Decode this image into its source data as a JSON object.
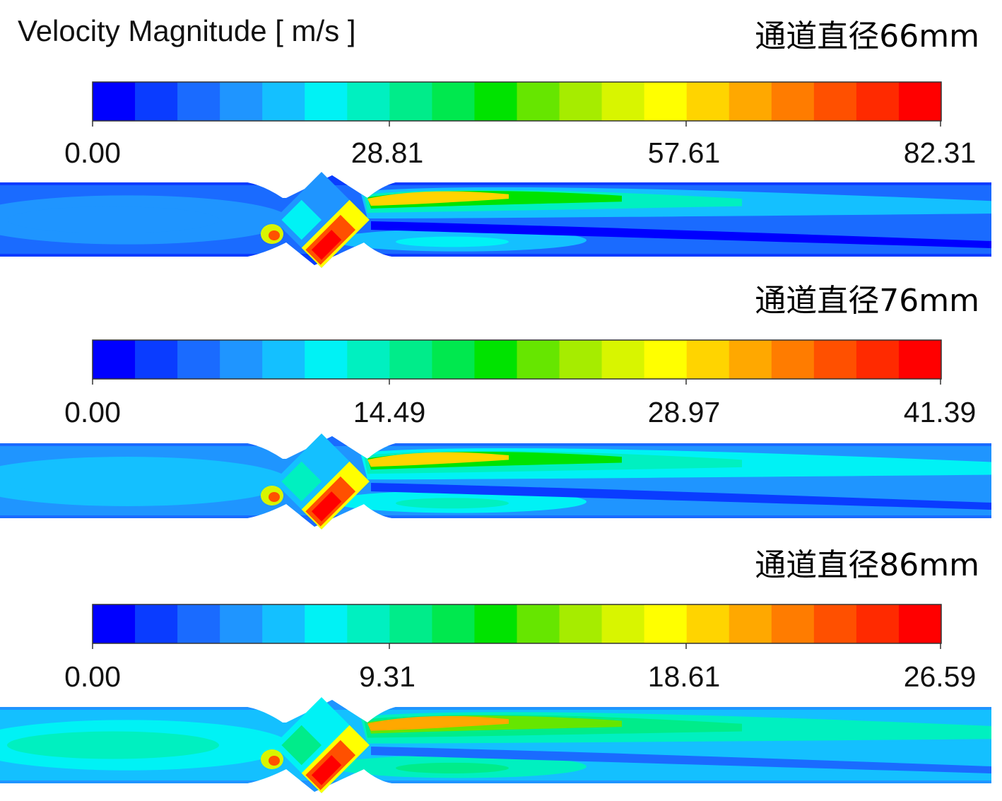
{
  "title": "Velocity Magnitude [ m/s ]",
  "colormap": [
    "#0000ff",
    "#0a3cff",
    "#1a6bff",
    "#1f95ff",
    "#14c0ff",
    "#00f2f5",
    "#00f0c0",
    "#00ec8a",
    "#00e84e",
    "#00e300",
    "#66e600",
    "#a6ec00",
    "#d8f500",
    "#ffff00",
    "#ffd400",
    "#ffa800",
    "#ff7c00",
    "#ff5000",
    "#ff2a00",
    "#ff0000"
  ],
  "panels": [
    {
      "label": "通道直径66mm",
      "ticks": [
        "0.00",
        "28.81",
        "57.61",
        "82.31"
      ],
      "range": [
        0,
        82.31
      ]
    },
    {
      "label": "通道直径76mm",
      "ticks": [
        "0.00",
        "14.49",
        "28.97",
        "41.39"
      ],
      "range": [
        0,
        41.39
      ]
    },
    {
      "label": "通道直径86mm",
      "ticks": [
        "0.00",
        "9.31",
        "18.61",
        "26.59"
      ],
      "range": [
        0,
        26.59
      ]
    }
  ]
}
